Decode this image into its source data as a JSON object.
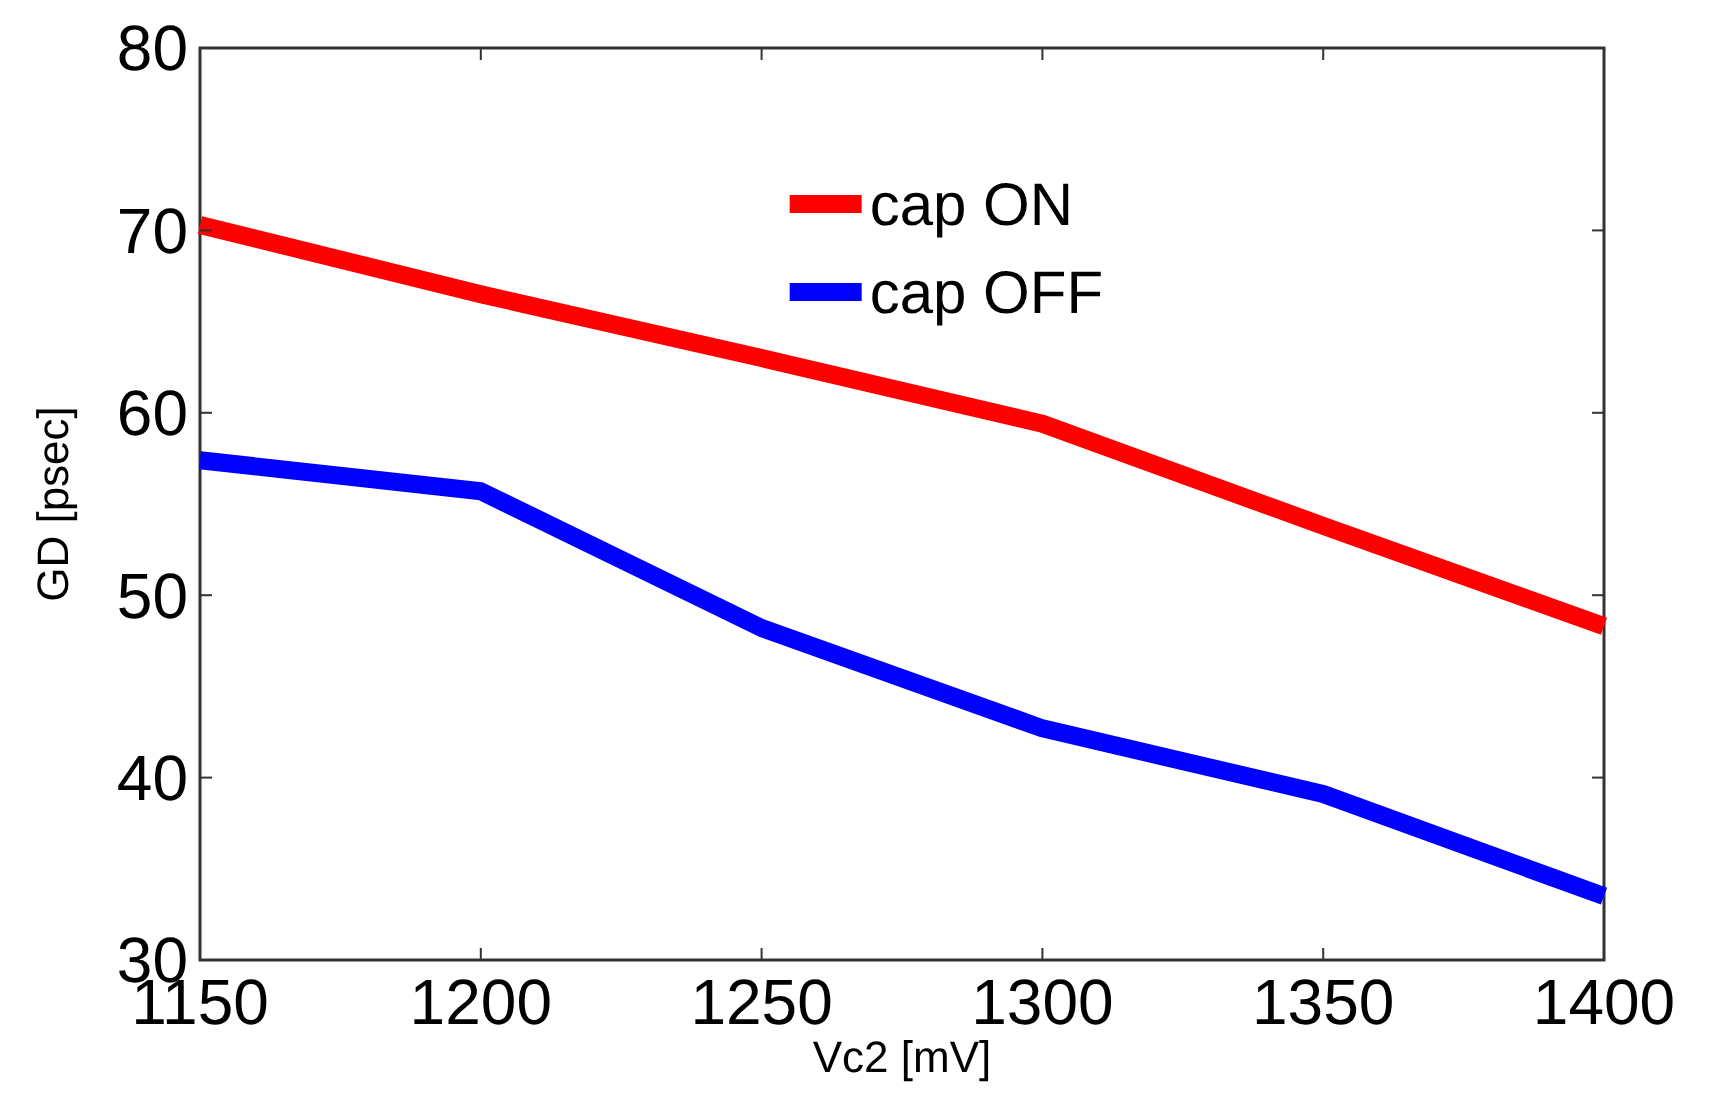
{
  "chart_data": {
    "type": "line",
    "xlabel": "Vc2 [mV]",
    "ylabel": "GD [psec]",
    "x": [
      1150,
      1200,
      1250,
      1300,
      1350,
      1400
    ],
    "xlim": [
      1150,
      1400
    ],
    "xticks": [
      1150,
      1200,
      1250,
      1300,
      1350,
      1400
    ],
    "ylim": [
      30,
      80
    ],
    "yticks": [
      30,
      40,
      50,
      60,
      70,
      80
    ],
    "grid": false,
    "legend": "top",
    "marker": "none",
    "line_style": "solid",
    "series": [
      {
        "name": "cap ON",
        "color": "#ff0000",
        "values": [
          70.3,
          66.5,
          63.0,
          59.4,
          53.8,
          48.3
        ]
      },
      {
        "name": "cap OFF",
        "color": "#0000ff",
        "values": [
          57.4,
          55.7,
          48.2,
          42.7,
          39.1,
          33.5
        ]
      }
    ]
  }
}
